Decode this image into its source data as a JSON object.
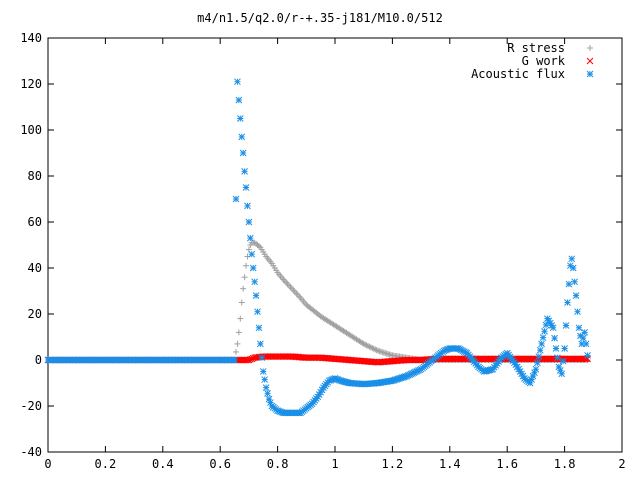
{
  "chart_data": {
    "type": "scatter",
    "title": "m4/n1.5/q2.0/r-+.35-j181/M10.0/512",
    "xlabel": "",
    "ylabel": "",
    "xlim": [
      0,
      2
    ],
    "ylim": [
      -40,
      140
    ],
    "xticks": [
      0,
      0.2,
      0.4,
      0.6,
      0.8,
      1,
      1.2,
      1.4,
      1.6,
      1.8,
      2
    ],
    "xtick_labels": [
      "0",
      "0.2",
      "0.4",
      "0.6",
      "0.8",
      "1",
      "1.2",
      "1.4",
      "1.6",
      "1.8",
      "2"
    ],
    "yticks": [
      -40,
      -20,
      0,
      20,
      40,
      60,
      80,
      100,
      120,
      140
    ],
    "ytick_labels": [
      "-40",
      "-20",
      "0",
      "20",
      "40",
      "60",
      "80",
      "100",
      "120",
      "140"
    ],
    "grid": false,
    "legend_position": "top-right",
    "series": [
      {
        "name": "R stress",
        "marker": "plus",
        "color": "#a0a0a0",
        "points": [
          [
            0.0,
            0
          ],
          [
            0.1,
            0
          ],
          [
            0.2,
            0
          ],
          [
            0.3,
            0
          ],
          [
            0.4,
            0
          ],
          [
            0.5,
            0
          ],
          [
            0.6,
            0
          ],
          [
            0.65,
            0
          ],
          [
            0.66,
            7
          ],
          [
            0.665,
            12
          ],
          [
            0.67,
            18
          ],
          [
            0.675,
            25
          ],
          [
            0.68,
            31
          ],
          [
            0.685,
            36
          ],
          [
            0.69,
            41
          ],
          [
            0.695,
            45
          ],
          [
            0.7,
            48
          ],
          [
            0.705,
            50
          ],
          [
            0.71,
            51
          ],
          [
            0.72,
            51
          ],
          [
            0.73,
            50
          ],
          [
            0.74,
            49
          ],
          [
            0.75,
            47
          ],
          [
            0.76,
            45
          ],
          [
            0.78,
            42
          ],
          [
            0.8,
            38
          ],
          [
            0.82,
            35
          ],
          [
            0.85,
            31
          ],
          [
            0.88,
            27
          ],
          [
            0.9,
            24
          ],
          [
            0.95,
            19
          ],
          [
            1.0,
            15
          ],
          [
            1.05,
            11
          ],
          [
            1.1,
            7
          ],
          [
            1.15,
            4
          ],
          [
            1.2,
            2
          ],
          [
            1.25,
            1
          ],
          [
            1.3,
            0
          ],
          [
            1.4,
            0
          ],
          [
            1.5,
            0
          ],
          [
            1.6,
            0
          ],
          [
            1.7,
            0
          ],
          [
            1.8,
            0
          ],
          [
            1.88,
            0
          ]
        ]
      },
      {
        "name": "G work",
        "marker": "cross",
        "color": "#ff0000",
        "points": [
          [
            0.0,
            0
          ],
          [
            0.1,
            0
          ],
          [
            0.2,
            0
          ],
          [
            0.3,
            0
          ],
          [
            0.4,
            0
          ],
          [
            0.5,
            0
          ],
          [
            0.6,
            0
          ],
          [
            0.65,
            0
          ],
          [
            0.7,
            0
          ],
          [
            0.72,
            1
          ],
          [
            0.75,
            1.5
          ],
          [
            0.8,
            1.5
          ],
          [
            0.85,
            1.5
          ],
          [
            0.9,
            1
          ],
          [
            0.95,
            1
          ],
          [
            1.0,
            0.5
          ],
          [
            1.05,
            0
          ],
          [
            1.1,
            -0.5
          ],
          [
            1.15,
            -1
          ],
          [
            1.2,
            -0.5
          ],
          [
            1.25,
            0
          ],
          [
            1.3,
            0
          ],
          [
            1.35,
            0.5
          ],
          [
            1.4,
            0.5
          ],
          [
            1.45,
            0.5
          ],
          [
            1.5,
            0.5
          ],
          [
            1.55,
            0.5
          ],
          [
            1.6,
            0.5
          ],
          [
            1.65,
            0.5
          ],
          [
            1.7,
            0.5
          ],
          [
            1.75,
            0.5
          ],
          [
            1.8,
            0.5
          ],
          [
            1.85,
            0.5
          ],
          [
            1.88,
            0.5
          ]
        ]
      },
      {
        "name": "Acoustic flux",
        "marker": "star",
        "color": "#1a8fe8",
        "points": [
          [
            0.0,
            0
          ],
          [
            0.1,
            0
          ],
          [
            0.2,
            0
          ],
          [
            0.3,
            0
          ],
          [
            0.4,
            0
          ],
          [
            0.5,
            0
          ],
          [
            0.6,
            0
          ],
          [
            0.65,
            0
          ],
          [
            0.655,
            70
          ],
          [
            0.66,
            121
          ],
          [
            0.665,
            113
          ],
          [
            0.67,
            105
          ],
          [
            0.675,
            97
          ],
          [
            0.68,
            90
          ],
          [
            0.685,
            82
          ],
          [
            0.69,
            75
          ],
          [
            0.695,
            67
          ],
          [
            0.7,
            60
          ],
          [
            0.705,
            53
          ],
          [
            0.71,
            46
          ],
          [
            0.715,
            40
          ],
          [
            0.72,
            34
          ],
          [
            0.725,
            28
          ],
          [
            0.73,
            21
          ],
          [
            0.735,
            14
          ],
          [
            0.74,
            7
          ],
          [
            0.745,
            1
          ],
          [
            0.75,
            -5
          ],
          [
            0.76,
            -12
          ],
          [
            0.77,
            -17
          ],
          [
            0.78,
            -20
          ],
          [
            0.8,
            -22
          ],
          [
            0.82,
            -23
          ],
          [
            0.85,
            -23
          ],
          [
            0.88,
            -23
          ],
          [
            0.9,
            -21
          ],
          [
            0.92,
            -19
          ],
          [
            0.94,
            -16
          ],
          [
            0.96,
            -12
          ],
          [
            0.98,
            -9
          ],
          [
            1.0,
            -8
          ],
          [
            1.02,
            -9
          ],
          [
            1.05,
            -10
          ],
          [
            1.1,
            -10.5
          ],
          [
            1.15,
            -10
          ],
          [
            1.2,
            -9
          ],
          [
            1.25,
            -7
          ],
          [
            1.3,
            -4
          ],
          [
            1.35,
            1
          ],
          [
            1.38,
            4
          ],
          [
            1.4,
            5
          ],
          [
            1.43,
            5
          ],
          [
            1.46,
            3
          ],
          [
            1.5,
            -3
          ],
          [
            1.52,
            -5
          ],
          [
            1.55,
            -4
          ],
          [
            1.58,
            1
          ],
          [
            1.6,
            3
          ],
          [
            1.63,
            -2
          ],
          [
            1.66,
            -8
          ],
          [
            1.68,
            -10
          ],
          [
            1.7,
            -4
          ],
          [
            1.72,
            7
          ],
          [
            1.74,
            18
          ],
          [
            1.76,
            14
          ],
          [
            1.77,
            5
          ],
          [
            1.78,
            -3
          ],
          [
            1.79,
            -6
          ],
          [
            1.8,
            5
          ],
          [
            1.81,
            25
          ],
          [
            1.82,
            41
          ],
          [
            1.825,
            44
          ],
          [
            1.83,
            40
          ],
          [
            1.84,
            28
          ],
          [
            1.85,
            14
          ],
          [
            1.86,
            7
          ],
          [
            1.87,
            12
          ],
          [
            1.88,
            2
          ]
        ]
      }
    ]
  }
}
